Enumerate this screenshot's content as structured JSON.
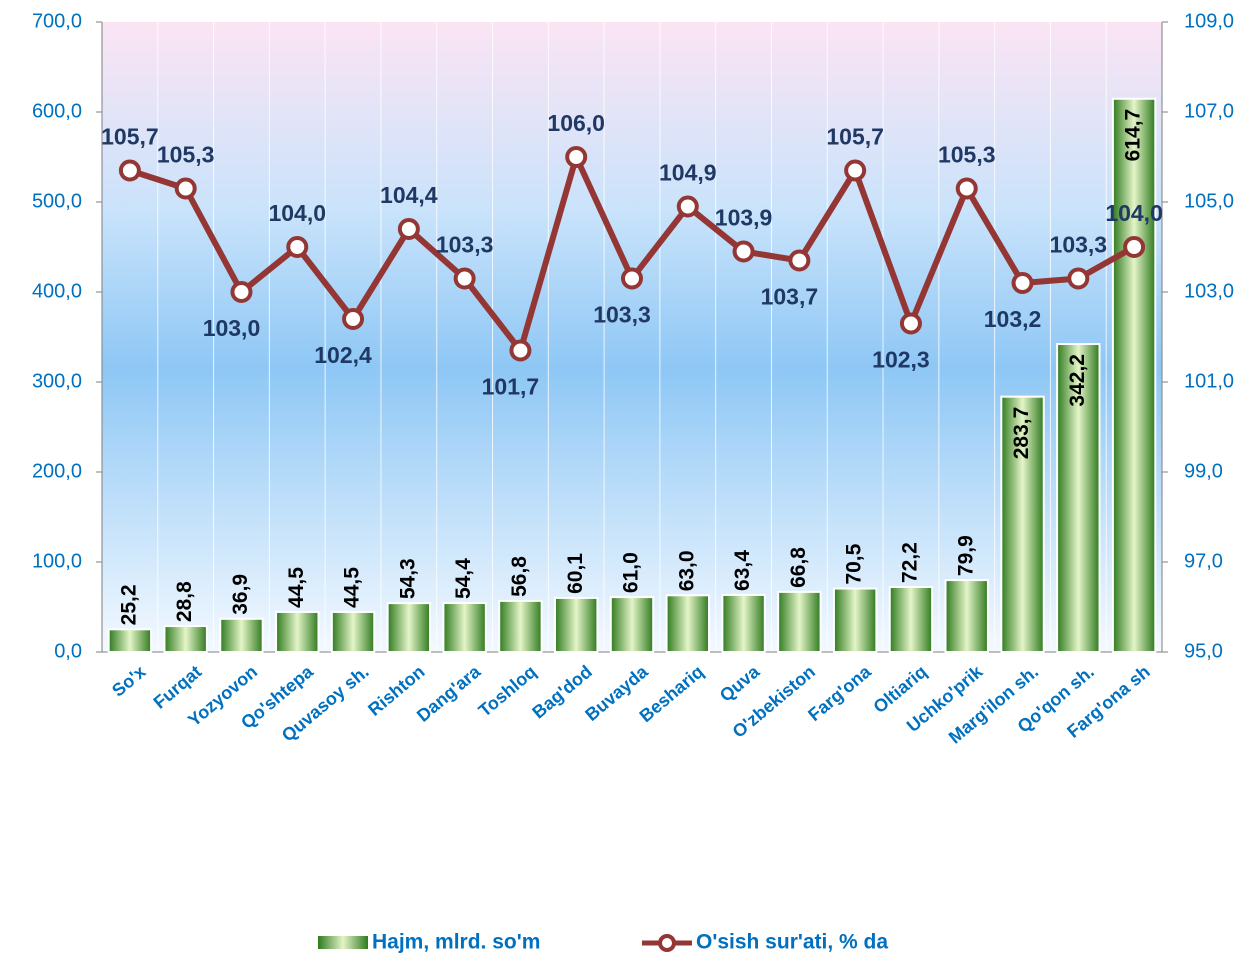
{
  "chart_data": {
    "type": "bar",
    "categories": [
      "So'x",
      "Furqat",
      "Yozyovon",
      "Qo'shtepa",
      "Quvasoy sh.",
      "Rishton",
      "Dang'ara",
      "Toshloq",
      "Bag'dod",
      "Buvayda",
      "Beshariq",
      "Quva",
      "O'zbekiston",
      "Farg'ona",
      "Oltiariq",
      "Uchko'prik",
      "Marg'ilon sh.",
      "Qo'qon sh.",
      "Farg'ona sh"
    ],
    "series": [
      {
        "name": "Hajm, mlrd. so'm",
        "type": "bar",
        "color": "#3a8a2a",
        "values": [
          25.2,
          28.8,
          36.9,
          44.5,
          44.5,
          54.3,
          54.4,
          56.8,
          60.1,
          61.0,
          63.0,
          63.4,
          66.8,
          70.5,
          72.2,
          79.9,
          283.7,
          342.2,
          614.7
        ],
        "value_labels": [
          "25,2",
          "28,8",
          "36,9",
          "44,5",
          "44,5",
          "54,3",
          "54,4",
          "56,8",
          "60,1",
          "61,0",
          "63,0",
          "63,4",
          "66,8",
          "70,5",
          "72,2",
          "79,9",
          "283,7",
          "342,2",
          "614,7"
        ]
      },
      {
        "name": "O'sish sur'ati, % da",
        "type": "line",
        "axis": "y2",
        "color": "#943634",
        "values": [
          105.7,
          105.3,
          103.0,
          104.0,
          102.4,
          104.4,
          103.3,
          101.7,
          106.0,
          103.3,
          104.9,
          103.9,
          103.7,
          105.7,
          102.3,
          105.3,
          103.2,
          103.3,
          104.0
        ],
        "value_labels": [
          "105,7",
          "105,3",
          "103,0",
          "104,0",
          "102,4",
          "104,4",
          "103,3",
          "101,7",
          "106,0",
          "103,3",
          "104,9",
          "103,9",
          "103,7",
          "105,7",
          "102,3",
          "105,3",
          "103,2",
          "103,3",
          "104,0"
        ]
      }
    ],
    "ylim": [
      0,
      700
    ],
    "yticks": [
      {
        "value": 0,
        "label": "0,0"
      },
      {
        "value": 100,
        "label": "100,0"
      },
      {
        "value": 200,
        "label": "200,0"
      },
      {
        "value": 300,
        "label": "300,0"
      },
      {
        "value": 400,
        "label": "400,0"
      },
      {
        "value": 500,
        "label": "500,0"
      },
      {
        "value": 600,
        "label": "600,0"
      },
      {
        "value": 700,
        "label": "700,0"
      }
    ],
    "y2lim": [
      95,
      109
    ],
    "y2ticks": [
      {
        "value": 95,
        "label": "95,0"
      },
      {
        "value": 97,
        "label": "97,0"
      },
      {
        "value": 99,
        "label": "99,0"
      },
      {
        "value": 101,
        "label": "101,0"
      },
      {
        "value": 103,
        "label": "103,0"
      },
      {
        "value": 105,
        "label": "105,0"
      },
      {
        "value": 107,
        "label": "107,0"
      },
      {
        "value": 109,
        "label": "109,0"
      }
    ],
    "legend": "bottom"
  }
}
